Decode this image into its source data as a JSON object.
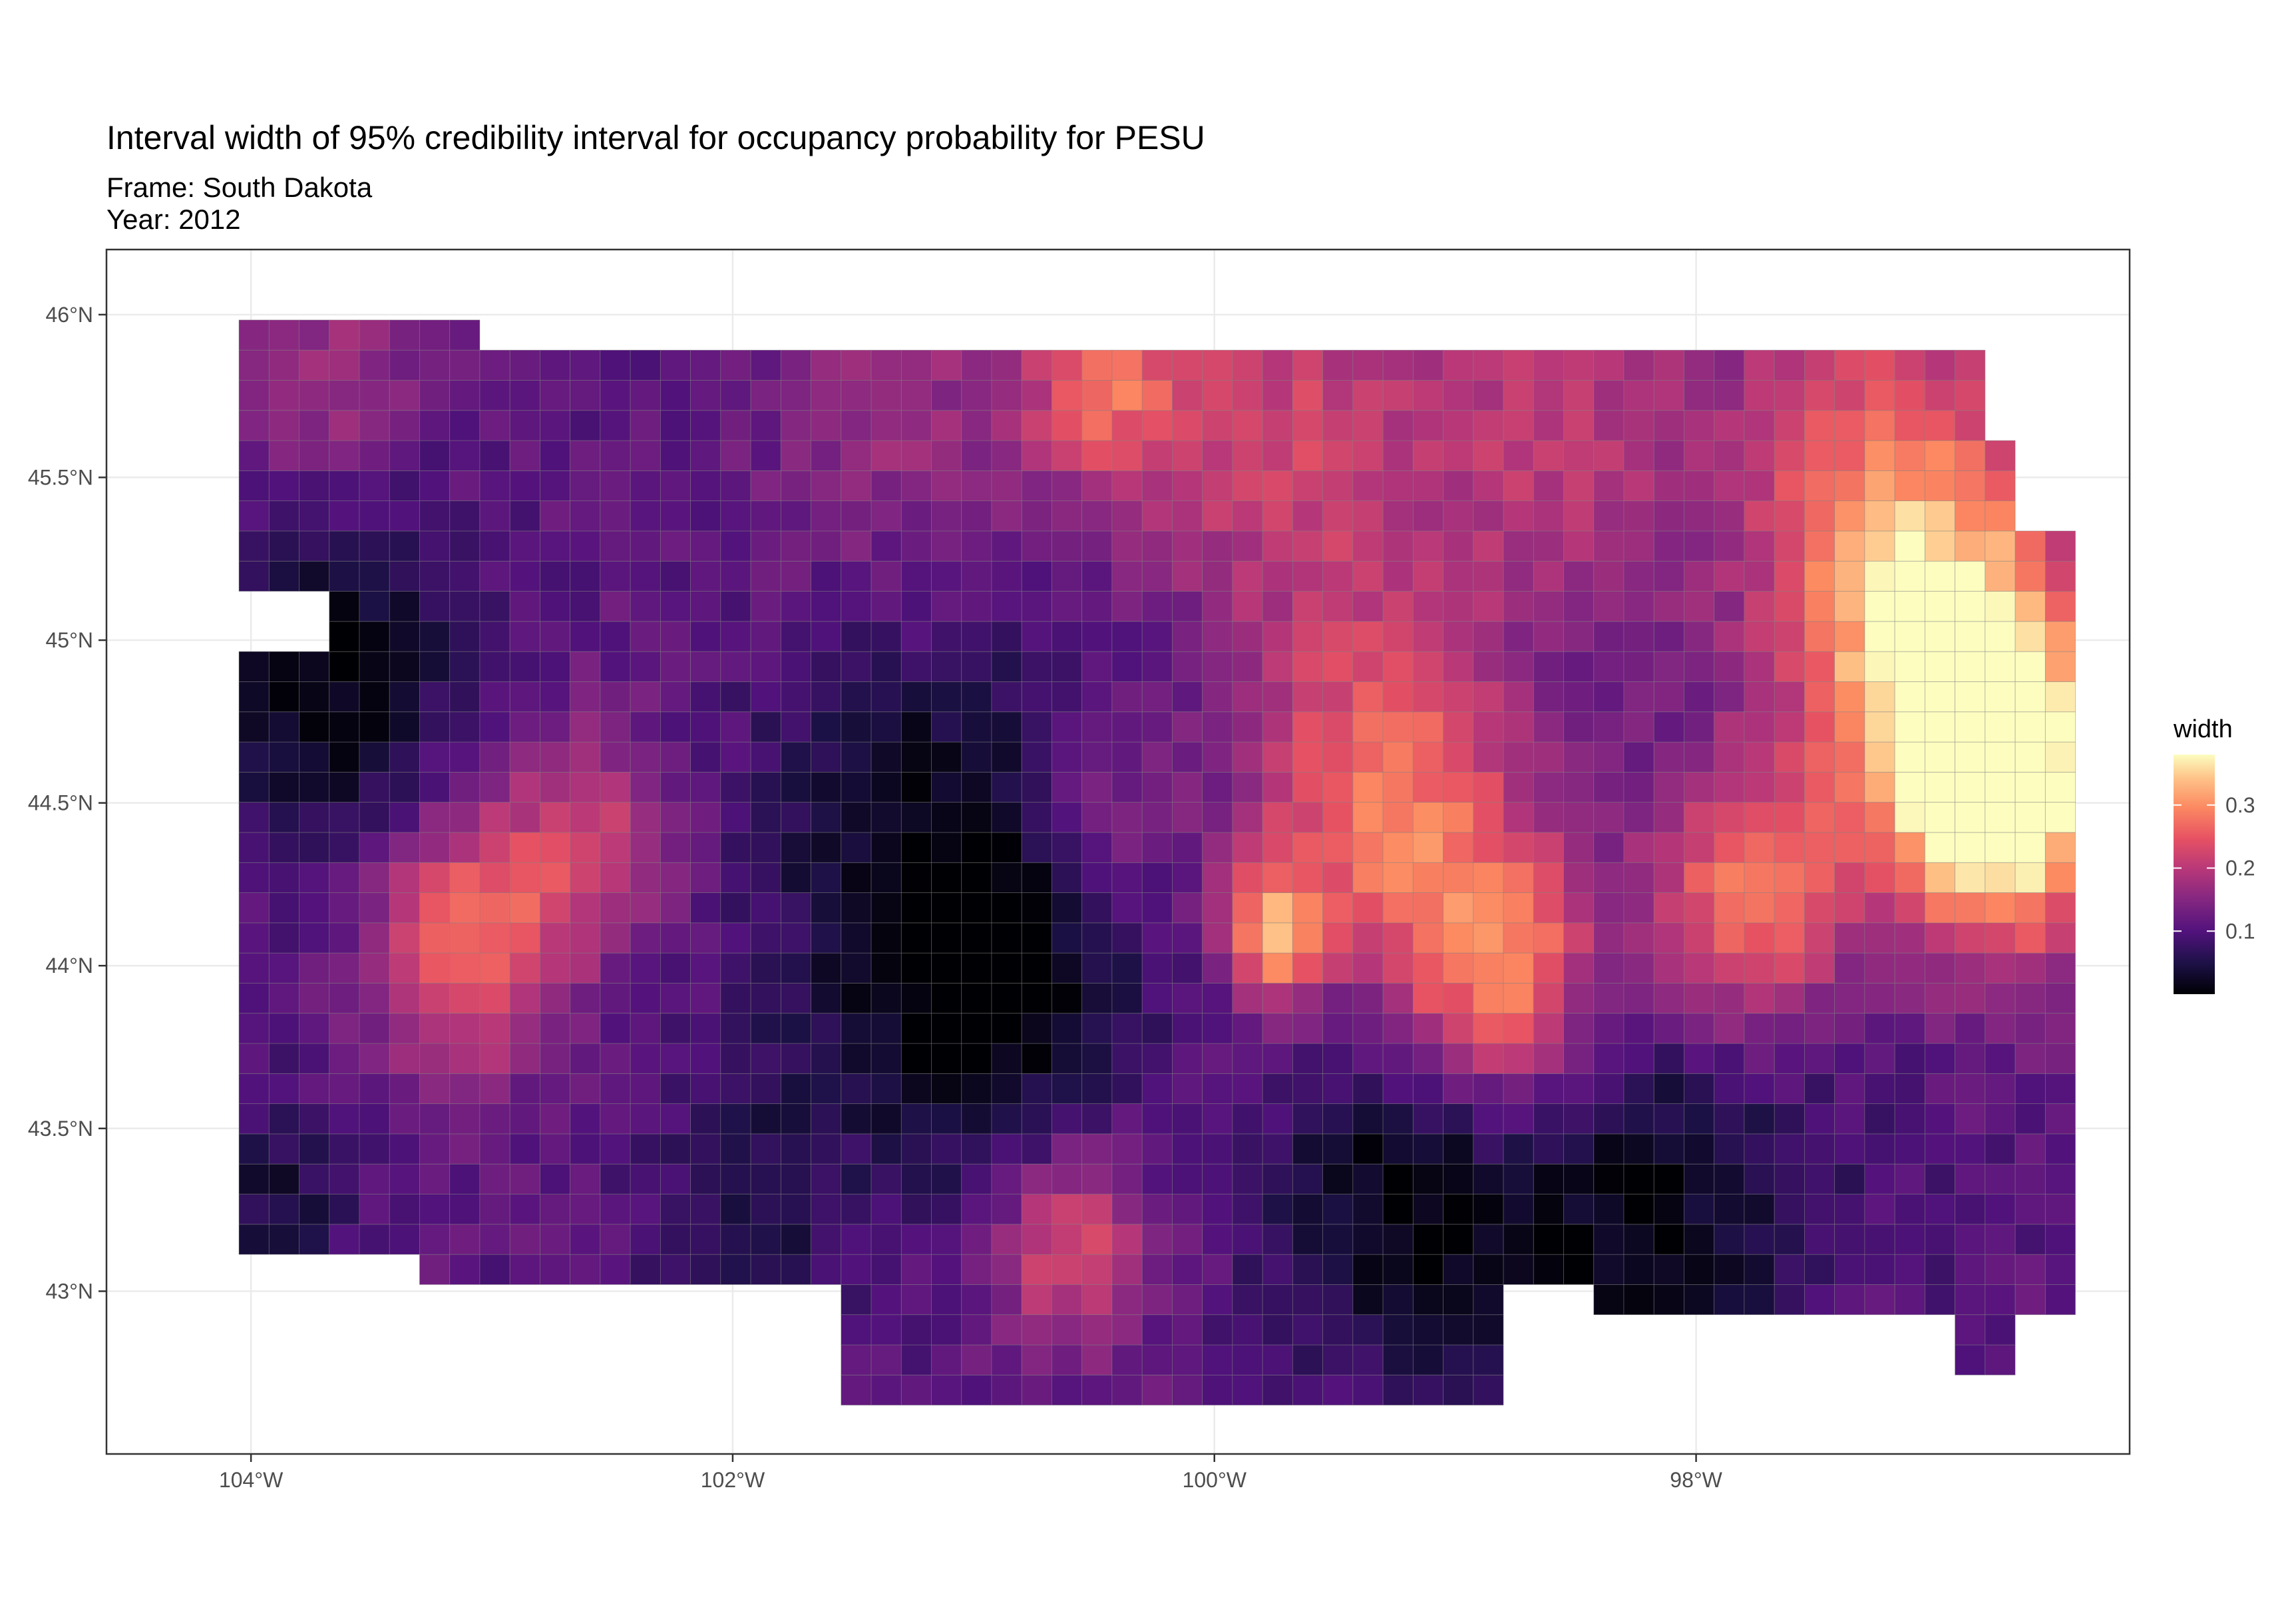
{
  "chart_data": {
    "type": "heatmap",
    "title": "Interval width of 95% credibility interval for occupancy probability for PESU",
    "subtitle_lines": [
      "Frame: South Dakota",
      "Year: 2012"
    ],
    "xlabel": "",
    "ylabel": "",
    "xlim": [
      -104.6,
      -96.2
    ],
    "ylim": [
      42.5,
      46.2
    ],
    "x_ticks": [
      {
        "value": -104,
        "label": "104°W"
      },
      {
        "value": -102,
        "label": "102°W"
      },
      {
        "value": -100,
        "label": "100°W"
      },
      {
        "value": -98,
        "label": "98°W"
      }
    ],
    "y_ticks": [
      {
        "value": 43,
        "label": "43°N"
      },
      {
        "value": 43.5,
        "label": "43.5°N"
      },
      {
        "value": 44,
        "label": "44°N"
      },
      {
        "value": 44.5,
        "label": "44.5°N"
      },
      {
        "value": 45,
        "label": "45°N"
      },
      {
        "value": 45.5,
        "label": "45.5°N"
      },
      {
        "value": 46,
        "label": "46°N"
      }
    ],
    "grid": true,
    "cell_size_deg": {
      "lon": 0.125,
      "lat": 0.0926
    },
    "region_extent": {
      "lon": [
        -104.05,
        -96.45
      ],
      "lat": [
        42.65,
        45.95
      ]
    },
    "legend": {
      "title": "width",
      "position": "right",
      "range": [
        0.0,
        0.38
      ],
      "ticks": [
        {
          "value": 0.1,
          "label": "0.1"
        },
        {
          "value": 0.2,
          "label": "0.2"
        },
        {
          "value": 0.3,
          "label": "0.3"
        }
      ],
      "colormap": "magma"
    },
    "value_field": {
      "base": 0.11,
      "min": 0.0,
      "max": 0.38,
      "hotspots": [
        {
          "lon": -96.95,
          "lat": 44.9,
          "peak": 0.34,
          "radius": 0.55
        },
        {
          "lon": -96.72,
          "lat": 44.5,
          "peak": 0.38,
          "radius": 0.45
        },
        {
          "lon": -97.25,
          "lat": 45.5,
          "peak": 0.25,
          "radius": 0.65
        },
        {
          "lon": -97.8,
          "lat": 44.18,
          "peak": 0.3,
          "radius": 0.42
        },
        {
          "lon": -98.8,
          "lat": 43.97,
          "peak": 0.31,
          "radius": 0.42
        },
        {
          "lon": -99.3,
          "lat": 44.5,
          "peak": 0.28,
          "radius": 0.55
        },
        {
          "lon": -99.75,
          "lat": 44.1,
          "peak": 0.3,
          "radius": 0.2
        },
        {
          "lon": -99.7,
          "lat": 45.6,
          "peak": 0.22,
          "radius": 0.6
        },
        {
          "lon": -100.45,
          "lat": 45.8,
          "peak": 0.25,
          "radius": 0.35
        },
        {
          "lon": -101.3,
          "lat": 45.65,
          "peak": 0.17,
          "radius": 0.55
        },
        {
          "lon": -98.6,
          "lat": 45.65,
          "peak": 0.2,
          "radius": 0.6
        },
        {
          "lon": -103.1,
          "lat": 44.08,
          "peak": 0.28,
          "radius": 0.38
        },
        {
          "lon": -102.6,
          "lat": 44.4,
          "peak": 0.21,
          "radius": 0.35
        },
        {
          "lon": -103.7,
          "lat": 45.8,
          "peak": 0.18,
          "radius": 0.4
        },
        {
          "lon": -100.6,
          "lat": 43.15,
          "peak": 0.24,
          "radius": 0.32
        },
        {
          "lon": -100.5,
          "lat": 44.45,
          "peak": 0.17,
          "radius": 0.3
        },
        {
          "lon": -97.4,
          "lat": 42.95,
          "peak": 0.14,
          "radius": 0.25
        }
      ],
      "coldspots": [
        {
          "lon": -103.7,
          "lat": 44.9,
          "depth": 0.11,
          "radius": 0.55
        },
        {
          "lon": -101.2,
          "lat": 44.4,
          "depth": 0.09,
          "radius": 0.7
        },
        {
          "lon": -100.9,
          "lat": 43.85,
          "depth": 0.09,
          "radius": 0.55
        },
        {
          "lon": -98.3,
          "lat": 43.2,
          "depth": 0.1,
          "radius": 0.9
        },
        {
          "lon": -99.3,
          "lat": 43.3,
          "depth": 0.08,
          "radius": 0.5
        },
        {
          "lon": -101.9,
          "lat": 43.3,
          "depth": 0.06,
          "radius": 0.45
        },
        {
          "lon": -103.9,
          "lat": 43.3,
          "depth": 0.07,
          "radius": 0.3
        }
      ],
      "noise_amplitude": 0.022
    }
  }
}
